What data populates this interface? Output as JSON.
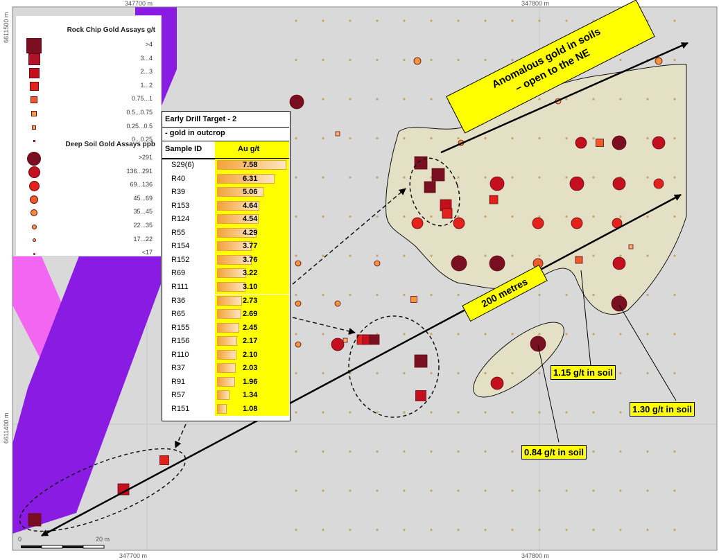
{
  "map": {
    "coords": {
      "top_left_x": "347700 m",
      "top_right_x": "347800 m",
      "bottom_left_x": "347700 m",
      "bottom_right_x": "347800 m",
      "left_top_y": "6611500 m",
      "left_bottom_y": "6611400 m"
    },
    "scale_bar": {
      "zero_label": "0",
      "end_label": "20 m"
    },
    "colors": {
      "background": "#d9d9d9",
      "purple_band": "#8a1be3",
      "magenta_band": "#f266f2",
      "anomaly_fill": "#e4e0c6",
      "gold_cat_1": "#7a0f22",
      "gold_cat_2": "#c40f1e",
      "gold_cat_3": "#e3221c",
      "gold_cat_4": "#ec5a2a",
      "gold_cat_5": "#f0a75a"
    }
  },
  "legend": {
    "rock_title": "Rock Chip Gold Assays g/t",
    "rock_items": [
      ">4",
      "3...4",
      "2...3",
      "1...2",
      "0.75...1",
      "0.5...0.75",
      "0.25...0.5",
      "0...0.25"
    ],
    "soil_title": "Deep Soil Gold Assays ppb",
    "soil_items": [
      ">291",
      "136...291",
      "69...136",
      "45...69",
      "35...45",
      "22...35",
      "17...22",
      "<17"
    ]
  },
  "table": {
    "title_line1": "Early Drill Target - 2",
    "title_line2": "- gold in outcrop",
    "col_sample": "Sample ID",
    "col_au": "Au g/t",
    "rows": [
      {
        "id": "S29(6)",
        "au": "7.58",
        "v": 7.58
      },
      {
        "id": "R40",
        "au": "6.31",
        "v": 6.31
      },
      {
        "id": "R39",
        "au": "5.06",
        "v": 5.06
      },
      {
        "id": "R153",
        "au": "4.64",
        "v": 4.64
      },
      {
        "id": "R124",
        "au": "4.54",
        "v": 4.54
      },
      {
        "id": "R55",
        "au": "4.29",
        "v": 4.29
      },
      {
        "id": "R154",
        "au": "3.77",
        "v": 3.77
      },
      {
        "id": "R152",
        "au": "3.76",
        "v": 3.76
      },
      {
        "id": "R69",
        "au": "3.22",
        "v": 3.22
      },
      {
        "id": "R111",
        "au": "3.10",
        "v": 3.1
      },
      {
        "id": "R36",
        "au": "2.73",
        "v": 2.73
      },
      {
        "id": "R65",
        "au": "2.69",
        "v": 2.69
      },
      {
        "id": "R155",
        "au": "2.45",
        "v": 2.45
      },
      {
        "id": "R156",
        "au": "2.17",
        "v": 2.17
      },
      {
        "id": "R110",
        "au": "2.10",
        "v": 2.1
      },
      {
        "id": "R37",
        "au": "2.03",
        "v": 2.03
      },
      {
        "id": "R91",
        "au": "1.96",
        "v": 1.96
      },
      {
        "id": "R57",
        "au": "1.34",
        "v": 1.34
      },
      {
        "id": "R151",
        "au": "1.08",
        "v": 1.08
      }
    ]
  },
  "annotations": {
    "ne_line1": "Anomalous gold in soils",
    "ne_line2": "– open to the NE",
    "distance": "200 metres",
    "soil_115": "1.15 g/t in soil",
    "soil_130": "1.30 g/t in soil",
    "soil_084": "0.84 g/t in soil"
  }
}
